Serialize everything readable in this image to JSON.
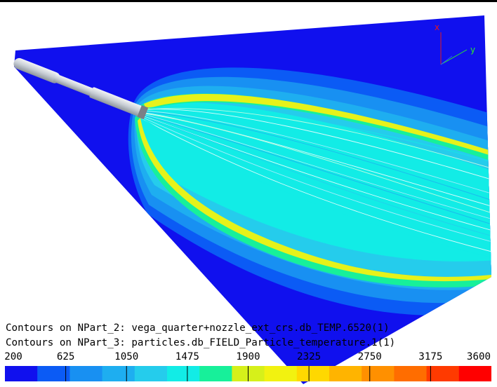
{
  "captions": {
    "line1": "Contours on NPart_2: vega_quarter+nozzle_ext_crs.db_TEMP.6520(1)",
    "line2": "Contours on NPart_3: particles.db_FIELD_Particle_temperature.1(1)"
  },
  "triad": {
    "x_label": "x",
    "y_label": "y",
    "x_color": "#e41a1a",
    "y_color": "#2ee82e"
  },
  "legend": {
    "tick_labels": [
      "200",
      "625",
      "1050",
      "1475",
      "1900",
      "2325",
      "2750",
      "3175",
      "3600"
    ],
    "colors": [
      "#1010ee",
      "#0b5bf5",
      "#1890f2",
      "#1eaef0",
      "#25ccec",
      "#12ece6",
      "#17f09a",
      "#d6f01a",
      "#f2f210",
      "#ffd800",
      "#ffb400",
      "#ff9000",
      "#ff6d00",
      "#ff3a00",
      "#ff0000"
    ]
  }
}
